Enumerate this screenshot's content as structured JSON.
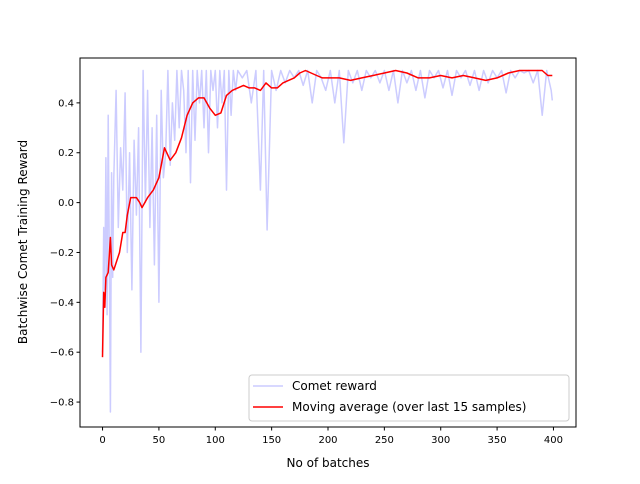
{
  "chart_data": {
    "type": "line",
    "title": "",
    "xlabel": "No of batches",
    "ylabel": "Batchwise Comet Training Reward",
    "xlim": [
      -20,
      420
    ],
    "ylim": [
      -0.9,
      0.58
    ],
    "xticks": [
      0,
      50,
      100,
      150,
      200,
      250,
      300,
      350,
      400
    ],
    "yticks": [
      -0.8,
      -0.6,
      -0.4,
      -0.2,
      0.0,
      0.2,
      0.4
    ],
    "ytick_labels": [
      "−0.8",
      "−0.6",
      "−0.4",
      "−0.2",
      "0.0",
      "0.2",
      "0.4"
    ],
    "grid": false,
    "legend_position": "lower-right",
    "series": [
      {
        "name": "Comet reward",
        "color": "#ccccff",
        "x": [
          0,
          1,
          2,
          3,
          4,
          5,
          6,
          7,
          8,
          9,
          10,
          12,
          14,
          16,
          18,
          20,
          22,
          24,
          26,
          28,
          30,
          32,
          34,
          36,
          38,
          40,
          42,
          44,
          46,
          48,
          50,
          52,
          54,
          56,
          58,
          60,
          62,
          64,
          66,
          68,
          70,
          72,
          74,
          76,
          78,
          80,
          82,
          84,
          86,
          88,
          90,
          92,
          94,
          96,
          98,
          100,
          102,
          104,
          106,
          108,
          110,
          112,
          114,
          116,
          118,
          120,
          124,
          128,
          132,
          136,
          140,
          143,
          146,
          150,
          154,
          158,
          162,
          166,
          170,
          174,
          178,
          182,
          186,
          190,
          194,
          198,
          202,
          206,
          210,
          214,
          218,
          222,
          226,
          230,
          234,
          238,
          242,
          246,
          250,
          254,
          258,
          262,
          266,
          270,
          274,
          278,
          282,
          286,
          290,
          294,
          298,
          302,
          306,
          310,
          314,
          318,
          322,
          326,
          330,
          334,
          338,
          342,
          346,
          350,
          354,
          358,
          362,
          366,
          370,
          374,
          378,
          382,
          386,
          390,
          394,
          398,
          399
        ],
        "values": [
          -0.6,
          -0.1,
          -0.35,
          0.18,
          -0.45,
          0.35,
          -0.2,
          -0.84,
          0.12,
          -0.3,
          0.1,
          0.45,
          -0.1,
          0.22,
          0.05,
          0.44,
          -0.2,
          0.2,
          -0.35,
          0.25,
          -0.05,
          0.3,
          -0.6,
          0.53,
          0.0,
          0.45,
          -0.1,
          0.3,
          -0.25,
          0.35,
          -0.4,
          0.45,
          0.1,
          0.2,
          0.53,
          0.15,
          0.4,
          0.25,
          0.53,
          0.3,
          0.53,
          0.45,
          0.2,
          0.53,
          0.08,
          0.53,
          0.25,
          0.53,
          0.4,
          0.53,
          0.3,
          0.53,
          0.2,
          0.53,
          0.45,
          0.53,
          0.3,
          0.53,
          0.4,
          0.53,
          0.05,
          0.53,
          0.35,
          0.53,
          0.45,
          0.53,
          0.5,
          0.53,
          0.4,
          0.53,
          0.05,
          0.53,
          -0.11,
          0.53,
          0.45,
          0.53,
          0.48,
          0.53,
          0.5,
          0.53,
          0.47,
          0.53,
          0.4,
          0.53,
          0.5,
          0.45,
          0.53,
          0.4,
          0.53,
          0.24,
          0.53,
          0.48,
          0.53,
          0.45,
          0.53,
          0.5,
          0.53,
          0.48,
          0.53,
          0.45,
          0.53,
          0.4,
          0.53,
          0.48,
          0.53,
          0.45,
          0.53,
          0.42,
          0.53,
          0.5,
          0.53,
          0.46,
          0.53,
          0.43,
          0.53,
          0.5,
          0.53,
          0.47,
          0.53,
          0.45,
          0.53,
          0.48,
          0.53,
          0.5,
          0.53,
          0.44,
          0.53,
          0.5,
          0.53,
          0.52,
          0.53,
          0.48,
          0.53,
          0.35,
          0.53,
          0.45,
          0.41
        ]
      },
      {
        "name": "Moving average (over last 15 samples)",
        "color": "#ff0000",
        "x": [
          0,
          1,
          2,
          3,
          5,
          7,
          8,
          10,
          15,
          18,
          20,
          22,
          25,
          30,
          33,
          35,
          40,
          45,
          50,
          55,
          60,
          65,
          70,
          75,
          80,
          85,
          90,
          95,
          100,
          105,
          110,
          115,
          120,
          125,
          130,
          135,
          140,
          145,
          150,
          155,
          160,
          165,
          170,
          175,
          180,
          185,
          190,
          195,
          200,
          210,
          220,
          230,
          240,
          250,
          260,
          270,
          280,
          290,
          300,
          310,
          320,
          330,
          340,
          350,
          360,
          370,
          380,
          390,
          395,
          399
        ],
        "values": [
          -0.62,
          -0.36,
          -0.42,
          -0.3,
          -0.28,
          -0.14,
          -0.25,
          -0.27,
          -0.2,
          -0.12,
          -0.12,
          -0.05,
          0.02,
          0.02,
          0.0,
          -0.02,
          0.02,
          0.05,
          0.1,
          0.22,
          0.17,
          0.2,
          0.26,
          0.35,
          0.4,
          0.42,
          0.42,
          0.38,
          0.35,
          0.36,
          0.43,
          0.45,
          0.46,
          0.47,
          0.46,
          0.46,
          0.45,
          0.48,
          0.46,
          0.46,
          0.48,
          0.49,
          0.5,
          0.52,
          0.53,
          0.52,
          0.51,
          0.5,
          0.5,
          0.5,
          0.49,
          0.5,
          0.51,
          0.52,
          0.53,
          0.52,
          0.5,
          0.5,
          0.51,
          0.5,
          0.51,
          0.5,
          0.49,
          0.5,
          0.52,
          0.53,
          0.53,
          0.53,
          0.51,
          0.51
        ]
      }
    ]
  }
}
